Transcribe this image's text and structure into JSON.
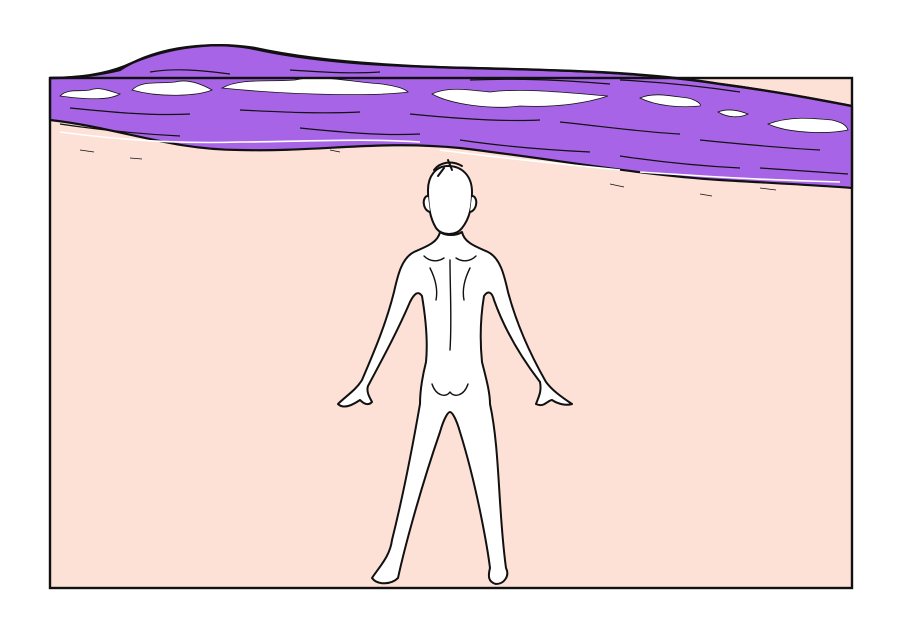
{
  "colors": {
    "page": "#ffffff",
    "sand": "#fde0d6",
    "sea": "#a864e6",
    "foam": "#ffffff",
    "ink": "#111111",
    "figure": "#ffffff"
  },
  "icons": {
    "scene": "comic-panel",
    "figure": "standing-figure-back-view"
  }
}
